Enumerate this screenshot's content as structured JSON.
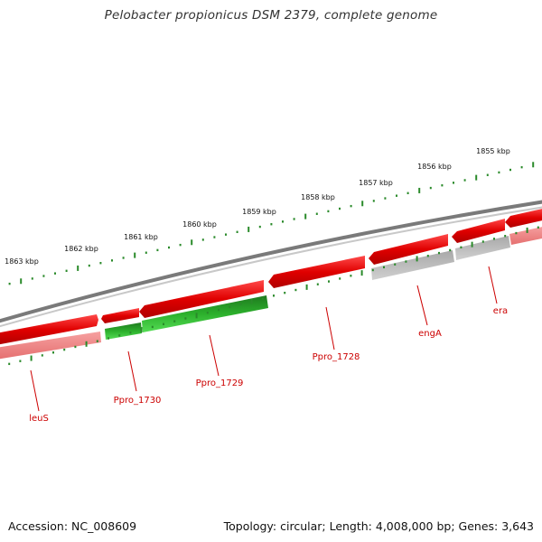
{
  "title": "Pelobacter propionicus DSM 2379, complete genome",
  "footer": {
    "accession": "Accession: NC_008609",
    "summary": "Topology: circular; Length: 4,008,000 bp; Genes: 3,643"
  },
  "colors": {
    "backbone": "#7a7a7a",
    "forward_gene": "#e00000",
    "reverse_red": "#f08080",
    "reverse_green": "#22aa22",
    "reverse_gray": "#b4b4b4",
    "tick": "#2a8a2a",
    "label": "#cc0000"
  },
  "scale": {
    "ticks": [
      "1863 kbp",
      "1862 kbp",
      "1861 kbp",
      "1860 kbp",
      "1859 kbp",
      "1858 kbp",
      "1857 kbp",
      "1856 kbp",
      "1855 kbp"
    ]
  },
  "genes": [
    {
      "label": "leuS",
      "strand": "reverse",
      "color": "red"
    },
    {
      "label": "Ppro_1730",
      "strand": "reverse",
      "color": "green"
    },
    {
      "label": "Ppro_1729",
      "strand": "reverse",
      "color": "green"
    },
    {
      "label": "Ppro_1728",
      "strand": "forward",
      "color": "red"
    },
    {
      "label": "engA",
      "strand": "reverse",
      "color": "gray"
    },
    {
      "label": "era",
      "strand": "reverse",
      "color": "gray"
    }
  ]
}
